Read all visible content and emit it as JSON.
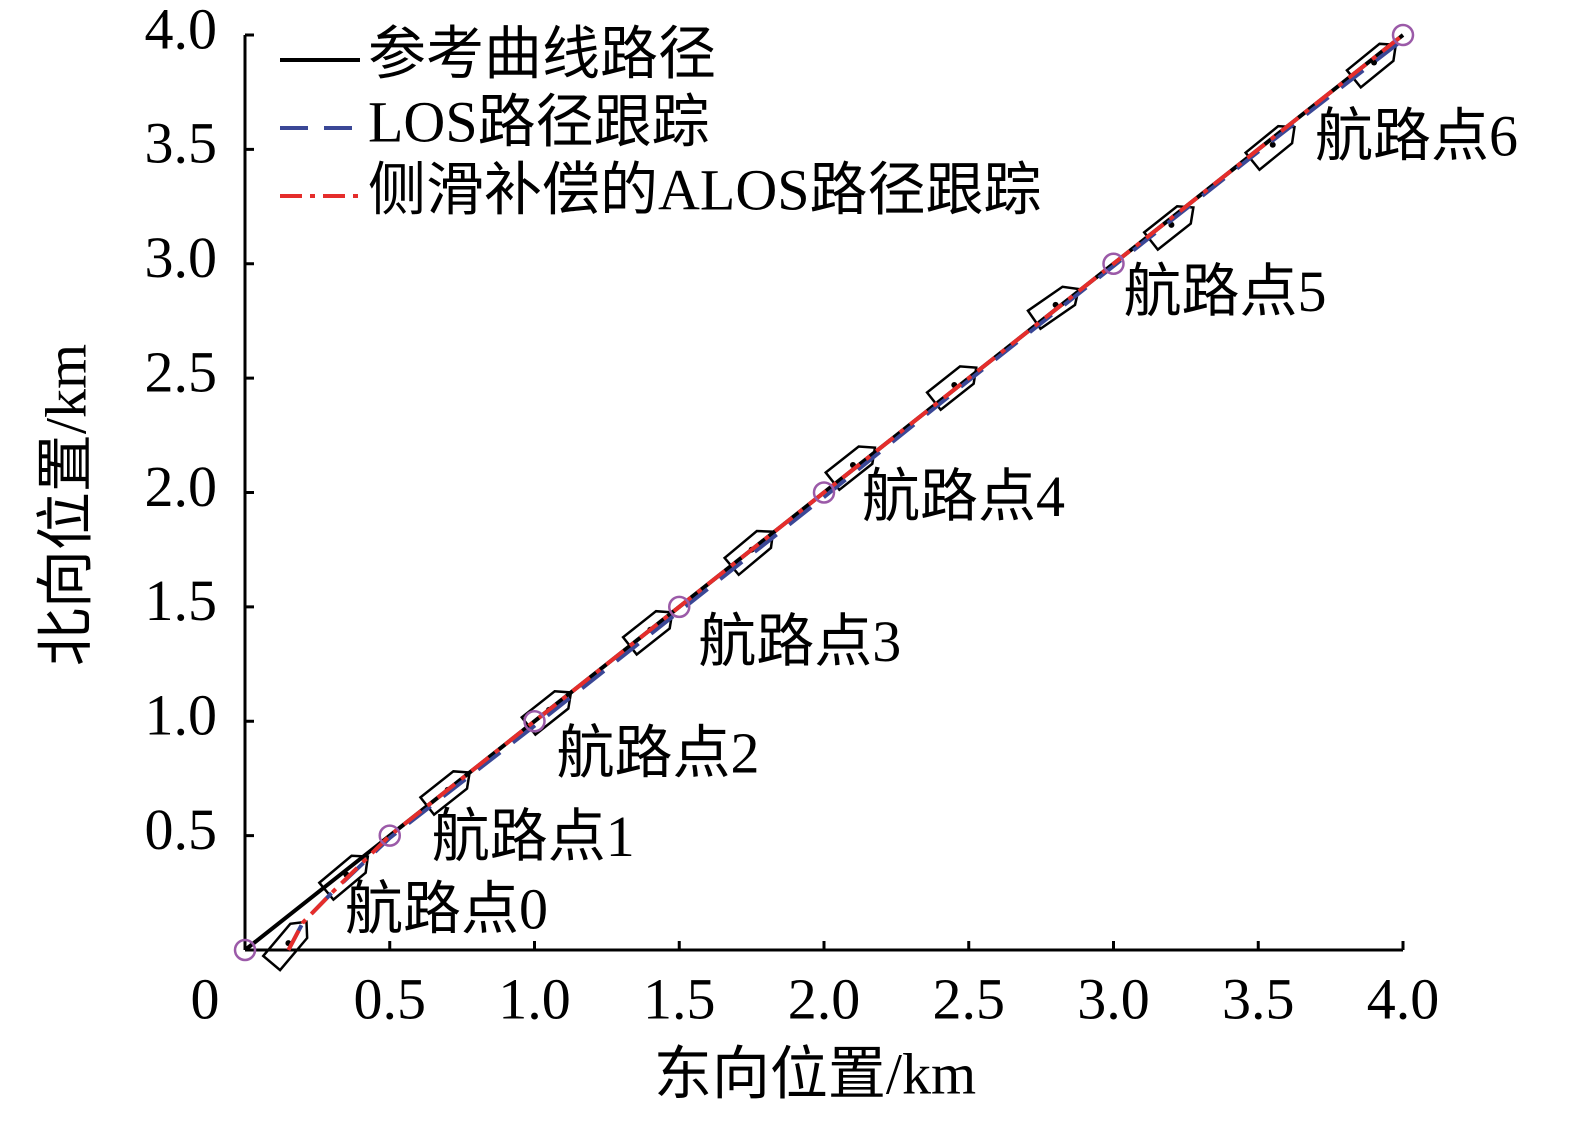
{
  "chart_data": {
    "type": "line",
    "xlabel": "东向位置/km",
    "ylabel": "北向位置/km",
    "xlim": [
      0,
      4
    ],
    "ylim": [
      0,
      4
    ],
    "xticks": [
      0,
      0.5,
      {
        "value": 1,
        "label": "1.0"
      },
      1.5,
      {
        "value": 2,
        "label": "2.0"
      },
      2.5,
      {
        "value": 3,
        "label": "3.0"
      },
      3.5,
      {
        "value": 4,
        "label": "4.0"
      }
    ],
    "yticks": [
      0.5,
      {
        "value": 1,
        "label": "1.0"
      },
      1.5,
      {
        "value": 2,
        "label": "2.0"
      },
      2.5,
      {
        "value": 3,
        "label": "3.0"
      },
      3.5,
      {
        "value": 4,
        "label": "4.0"
      }
    ],
    "series": [
      {
        "name": "参考曲线路径",
        "color": "#000000",
        "dash": "none",
        "x": [
          0,
          0.5,
          1,
          1.5,
          2,
          2.5,
          3,
          3.5,
          4
        ],
        "values": [
          0,
          0.5,
          1,
          1.5,
          2,
          2.5,
          3,
          3.5,
          4
        ]
      },
      {
        "name": "LOS路径跟踪",
        "color": "#3a4796",
        "dash": "28 16",
        "x": [
          0.15,
          0.2,
          0.3,
          0.5,
          1,
          1.5,
          2,
          2.5,
          3,
          3.5,
          4
        ],
        "values": [
          0,
          0.12,
          0.25,
          0.49,
          0.98,
          1.48,
          1.98,
          2.49,
          2.99,
          3.49,
          3.98
        ]
      },
      {
        "name": "侧滑补偿的ALOS路径跟踪",
        "color": "#e52d2b",
        "dash": "22 8 5 8",
        "x": [
          0.15,
          0.2,
          0.3,
          0.5,
          1,
          1.5,
          2,
          2.5,
          3,
          3.5,
          4
        ],
        "values": [
          0,
          0.12,
          0.25,
          0.5,
          1,
          1.5,
          2,
          2.5,
          3,
          3.5,
          4
        ]
      }
    ],
    "waypoints": {
      "color": "#9b5aa8",
      "x": [
        0,
        0.5,
        1,
        1.5,
        2,
        3,
        4
      ],
      "values": [
        0,
        0.5,
        1,
        1.5,
        2,
        3,
        4
      ],
      "labels": [
        "航路点0",
        "航路点1",
        "航路点2",
        "航路点3",
        "航路点4",
        "航路点5",
        "航路点6"
      ]
    },
    "ships": {
      "x": [
        0.15,
        0.35,
        0.7,
        1.05,
        1.4,
        1.75,
        2.1,
        2.45,
        2.8,
        3.2,
        3.55,
        3.9
      ],
      "values": [
        0.03,
        0.33,
        0.7,
        1.05,
        1.4,
        1.75,
        2.12,
        2.47,
        2.82,
        3.17,
        3.52,
        3.88
      ]
    }
  }
}
